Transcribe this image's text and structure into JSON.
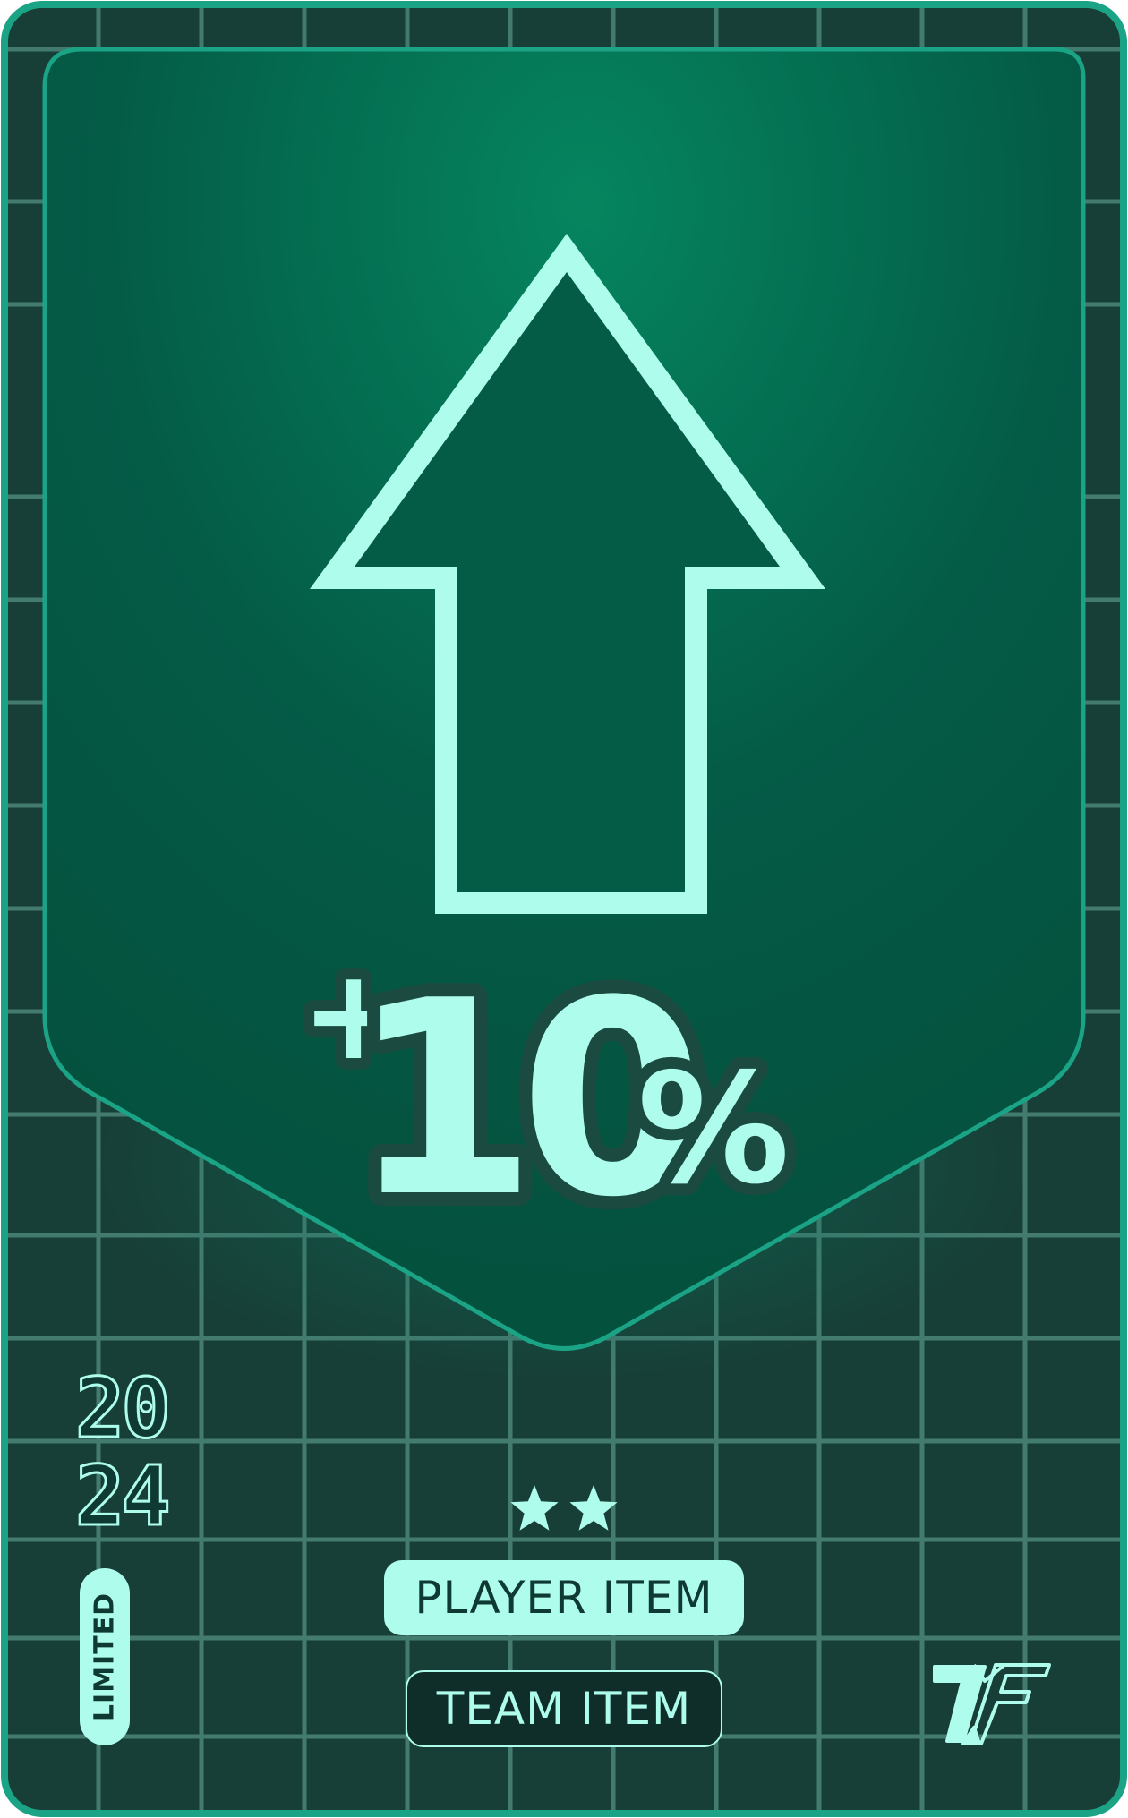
{
  "card": {
    "boost_value": "+10%",
    "boost_plus": "+",
    "boost_number": "10",
    "boost_percent": "%",
    "year_top": "20",
    "year_bottom": "24",
    "edition": "LIMITED",
    "stars": 2,
    "primary_tag": "PLAYER ITEM",
    "secondary_tag": "TEAM ITEM",
    "icons": [
      "arrow-up-icon",
      "star-icon",
      "brand-logo-icon"
    ]
  },
  "colors": {
    "accent": "#aefcec",
    "frame": "#1aa385",
    "background": "#173f37",
    "panel_center": "#05835f",
    "panel_edge": "#04533f",
    "text_dark": "#0f3a33",
    "outline_dark": "#1b4a40"
  }
}
